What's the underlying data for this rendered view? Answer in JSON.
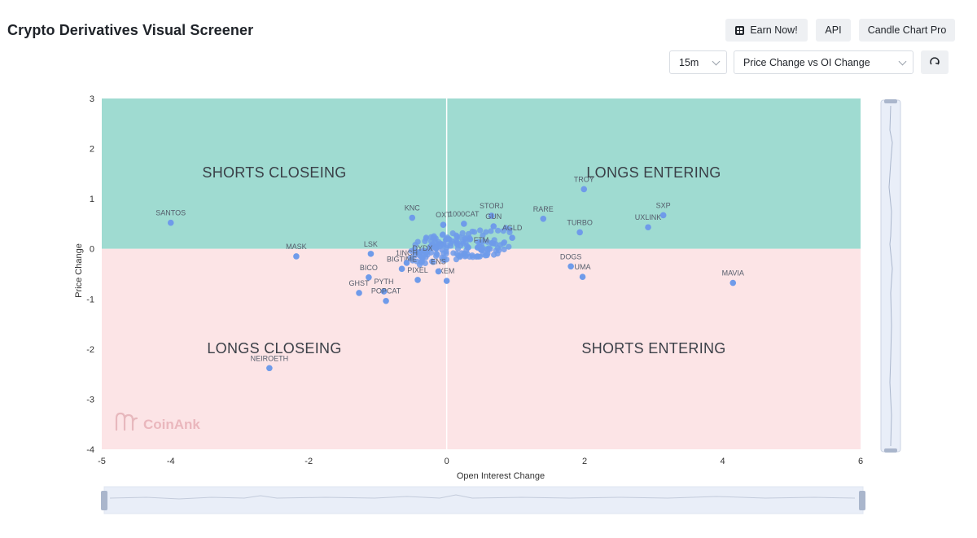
{
  "header": {
    "title": "Crypto Derivatives Visual Screener"
  },
  "toolbar": {
    "earn_label": "Earn Now!",
    "api_label": "API",
    "candle_label": "Candle Chart Pro"
  },
  "controls": {
    "interval": "15m",
    "metric": "Price Change vs OI Change"
  },
  "watermark": "CoinAnk",
  "colors": {
    "positive_zone": "#9fdbd1",
    "negative_zone": "#fce4e6",
    "point": "#6f9bea",
    "label": "#555d6b"
  },
  "chart_data": {
    "type": "scatter",
    "xlabel": "Open Interest Change",
    "ylabel": "Price Change",
    "xlim": [
      -5,
      6
    ],
    "ylim": [
      -4,
      3
    ],
    "xticks": [
      "-5",
      "-4",
      "-2",
      "0",
      "2",
      "4",
      "6"
    ],
    "yticks": [
      "3",
      "2",
      "1",
      "0",
      "-1",
      "-2",
      "-3",
      "-4"
    ],
    "quadrants": {
      "top_left": "SHORTS CLOSEING",
      "top_right": "LONGS ENTERING",
      "bottom_left": "LONGS CLOSEING",
      "bottom_right": "SHORTS ENTERING"
    },
    "points": [
      {
        "name": "SANTOS",
        "x": -4.0,
        "y": 0.52
      },
      {
        "name": "MASK",
        "x": -2.18,
        "y": -0.15
      },
      {
        "name": "NEIROETH",
        "x": -2.57,
        "y": -2.38
      },
      {
        "name": "LSK",
        "x": -1.1,
        "y": -0.1
      },
      {
        "name": "BICO",
        "x": -1.13,
        "y": -0.57
      },
      {
        "name": "GHST",
        "x": -1.27,
        "y": -0.88
      },
      {
        "name": "PYTH",
        "x": -0.91,
        "y": -0.85
      },
      {
        "name": "POPCAT",
        "x": -0.88,
        "y": -1.04
      },
      {
        "name": "KNC",
        "x": -0.5,
        "y": 0.62
      },
      {
        "name": "OXT",
        "x": -0.05,
        "y": 0.48
      },
      {
        "name": "1000CAT",
        "x": 0.25,
        "y": 0.5
      },
      {
        "name": "STORJ",
        "x": 0.65,
        "y": 0.66
      },
      {
        "name": "GUN",
        "x": 0.68,
        "y": 0.45
      },
      {
        "name": "AGLD",
        "x": 0.95,
        "y": 0.22
      },
      {
        "name": "RARE",
        "x": 1.4,
        "y": 0.6
      },
      {
        "name": "TROY",
        "x": 1.99,
        "y": 1.19
      },
      {
        "name": "TURBO",
        "x": 1.93,
        "y": 0.33
      },
      {
        "name": "UXLINK",
        "x": 2.92,
        "y": 0.43
      },
      {
        "name": "SXP",
        "x": 3.14,
        "y": 0.67
      },
      {
        "name": "DOGS",
        "x": 1.8,
        "y": -0.35
      },
      {
        "name": "UMA",
        "x": 1.97,
        "y": -0.56
      },
      {
        "name": "MAVIA",
        "x": 4.15,
        "y": -0.68
      },
      {
        "name": "XEM",
        "x": 0.0,
        "y": -0.64
      },
      {
        "name": "PIXEL",
        "x": -0.42,
        "y": -0.62
      },
      {
        "name": "BIGTIME",
        "x": -0.65,
        "y": -0.4
      },
      {
        "name": "1INCH",
        "x": -0.58,
        "y": -0.28
      },
      {
        "name": "DYDX",
        "x": -0.35,
        "y": -0.18
      },
      {
        "name": "ENS",
        "x": -0.12,
        "y": -0.45
      },
      {
        "name": "FTM",
        "x": 0.5,
        "y": -0.02
      }
    ]
  }
}
